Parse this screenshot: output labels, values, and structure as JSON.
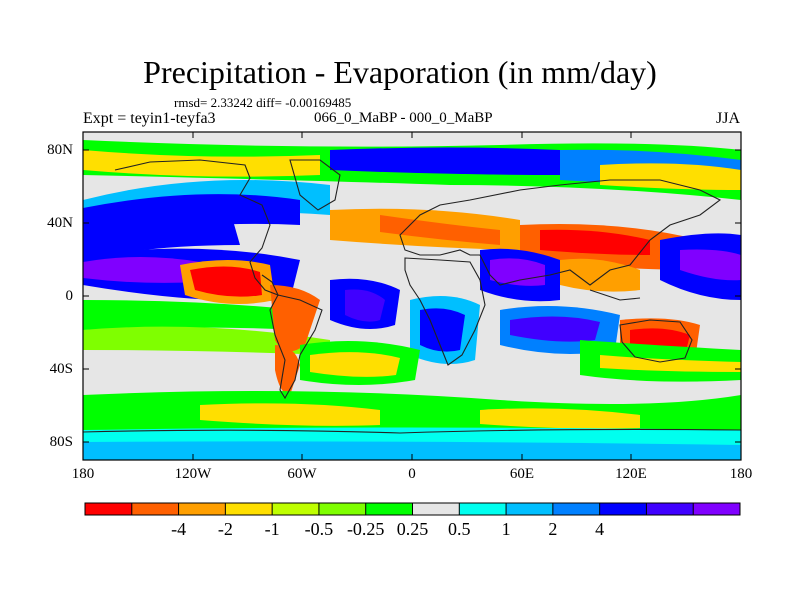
{
  "title": "Precipitation - Evaporation (in mm/day)",
  "stats_line": "rmsd= 2.33242 diff= -0.00169485",
  "experiment_label": "Expt = teyin1-teyfa3",
  "difference_label": "066_0_MaBP - 000_0_MaBP",
  "season_label": "JJA",
  "lat_ticks": [
    "80N",
    "40N",
    "0",
    "40S",
    "80S"
  ],
  "lon_ticks": [
    "180",
    "120W",
    "60W",
    "0",
    "60E",
    "120E",
    "180"
  ],
  "colorbar": {
    "labels": [
      "-4",
      "-2",
      "-1",
      "-0.5",
      "-0.25",
      "0.25",
      "0.5",
      "1",
      "2",
      "4"
    ],
    "colors": [
      "#ff0000",
      "#ff6000",
      "#ff9f00",
      "#ffdf00",
      "#bfff00",
      "#7fff00",
      "#00ff00",
      "#e6e6e6",
      "#00ffef",
      "#00bfff",
      "#0080ff",
      "#0000ff",
      "#4000ff",
      "#8000ff"
    ]
  },
  "map_palette": {
    "ocean_background": "#e6e6e6",
    "coastline": "#222222"
  }
}
